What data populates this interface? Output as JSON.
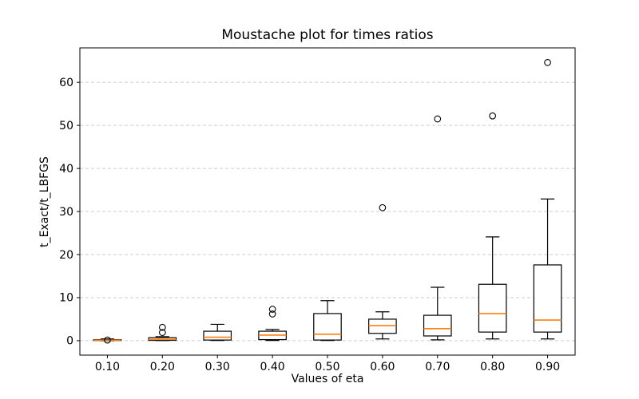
{
  "chart_data": {
    "type": "boxplot",
    "title": "Moustache plot for times ratios",
    "xlabel": "Values of eta",
    "ylabel": "t_Exact/t_LBFGS",
    "categories": [
      "0.10",
      "0.20",
      "0.30",
      "0.40",
      "0.50",
      "0.60",
      "0.70",
      "0.80",
      "0.90"
    ],
    "yticks": [
      0,
      10,
      20,
      30,
      40,
      50,
      60
    ],
    "ylim": [
      -3.35,
      68.0
    ],
    "grid": "horizontal dashed gridlines at each y tick",
    "legend": "none",
    "colors": {
      "median": "#ff7f0e",
      "box_stroke": "#000000",
      "whisker": "#000000",
      "flier_stroke": "#000000",
      "gridline": "#cccccc",
      "spine": "#000000",
      "background": "#ffffff"
    },
    "boxes": [
      {
        "category": "0.10",
        "whislo": 0.02,
        "q1": 0.05,
        "med": 0.13,
        "q3": 0.25,
        "whishi": 0.4,
        "fliers": [
          0.15
        ]
      },
      {
        "category": "0.20",
        "whislo": 0.02,
        "q1": 0.08,
        "med": 0.3,
        "q3": 0.7,
        "whishi": 0.95,
        "fliers": [
          1.9,
          3.1
        ]
      },
      {
        "category": "0.30",
        "whislo": 0.05,
        "q1": 0.15,
        "med": 0.8,
        "q3": 2.2,
        "whishi": 3.8,
        "fliers": []
      },
      {
        "category": "0.40",
        "whislo": 0.05,
        "q1": 0.25,
        "med": 1.3,
        "q3": 2.2,
        "whishi": 2.6,
        "fliers": [
          6.2,
          7.3
        ]
      },
      {
        "category": "0.50",
        "whislo": 0.05,
        "q1": 0.15,
        "med": 1.5,
        "q3": 6.3,
        "whishi": 9.3,
        "fliers": []
      },
      {
        "category": "0.60",
        "whislo": 0.4,
        "q1": 1.7,
        "med": 3.5,
        "q3": 5.0,
        "whishi": 6.7,
        "fliers": [
          30.9
        ]
      },
      {
        "category": "0.70",
        "whislo": 0.2,
        "q1": 1.1,
        "med": 2.8,
        "q3": 5.9,
        "whishi": 12.4,
        "fliers": [
          51.5
        ]
      },
      {
        "category": "0.80",
        "whislo": 0.4,
        "q1": 2.0,
        "med": 6.3,
        "q3": 13.1,
        "whishi": 24.1,
        "fliers": [
          52.2
        ]
      },
      {
        "category": "0.90",
        "whislo": 0.4,
        "q1": 2.0,
        "med": 4.8,
        "q3": 17.6,
        "whishi": 32.9,
        "fliers": [
          64.6
        ]
      }
    ]
  }
}
